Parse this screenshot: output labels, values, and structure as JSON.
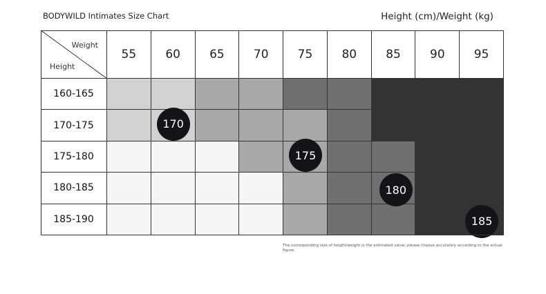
{
  "header": {
    "brand_title": "BODYWILD Intimates Size Chart",
    "unit_title": "Height (cm)/Weight (kg)"
  },
  "table": {
    "corner": {
      "weight_label": "Weight",
      "height_label": "Height"
    },
    "weights": [
      "55",
      "60",
      "65",
      "70",
      "75",
      "80",
      "85",
      "90",
      "95"
    ],
    "heights": [
      "160-165",
      "170-175",
      "175-180",
      "180-185",
      "185-190"
    ],
    "shade_colors": {
      "0": "#f5f5f5",
      "1": "#d3d1d2",
      "2": "#a8a8a8",
      "3": "#707070",
      "4": "#333333"
    },
    "shades": [
      [
        1,
        1,
        2,
        2,
        3,
        3,
        4,
        4,
        4
      ],
      [
        1,
        1,
        2,
        2,
        2,
        3,
        4,
        4,
        4
      ],
      [
        0,
        0,
        0,
        2,
        2,
        3,
        3,
        4,
        4
      ],
      [
        0,
        0,
        0,
        0,
        2,
        3,
        3,
        4,
        4
      ],
      [
        0,
        0,
        0,
        0,
        2,
        3,
        3,
        4,
        4
      ]
    ]
  },
  "badges": [
    {
      "label": "170",
      "row": 0.95,
      "col": 1.0
    },
    {
      "label": "175",
      "row": 1.95,
      "col": 4.0
    },
    {
      "label": "180",
      "row": 3.05,
      "col": 6.05
    },
    {
      "label": "185",
      "row": 4.05,
      "col": 8.0
    }
  ],
  "footnote": "The corresponding size of height/weight is the estimated value, please choose accurately according to the actual figure."
}
